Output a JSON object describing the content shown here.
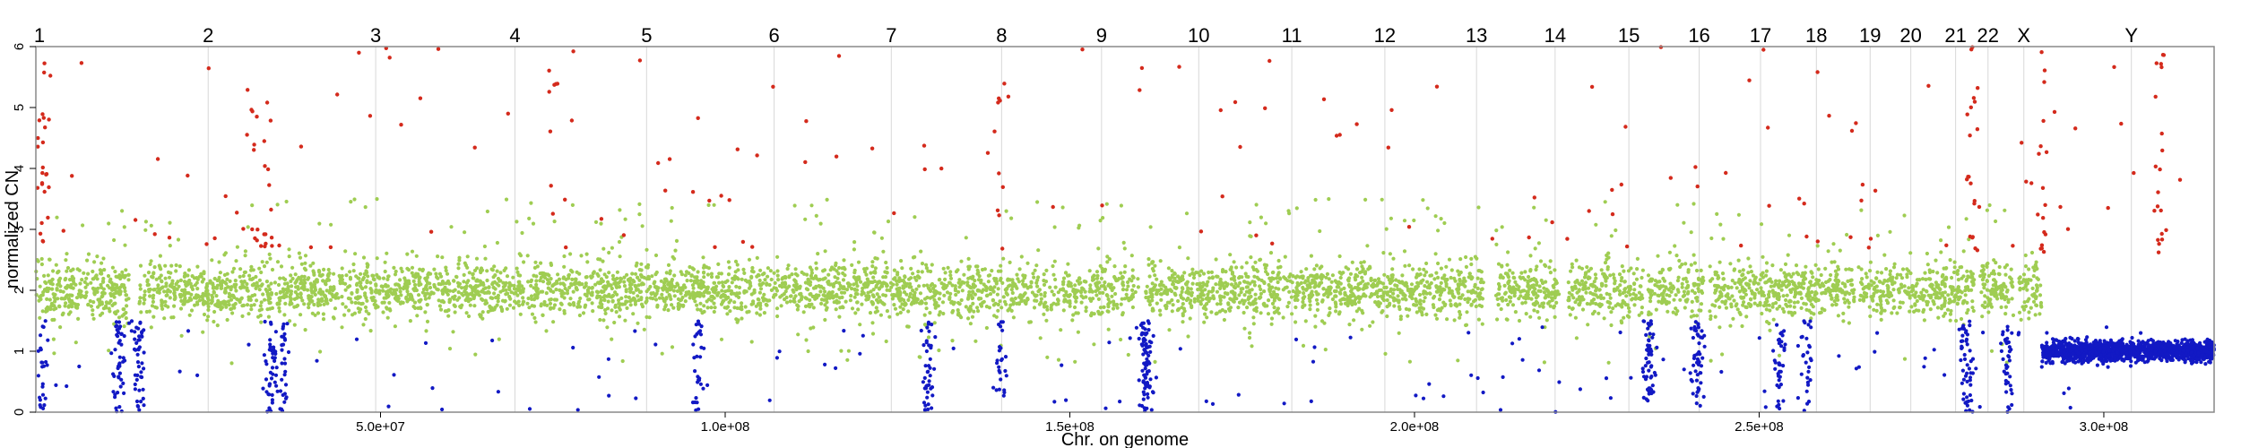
{
  "chart_data": {
    "type": "scatter",
    "title": "",
    "xlabel": "Chr. on genome",
    "ylabel": "normalized CN",
    "xlim": [
      0,
      316000000
    ],
    "ylim": [
      0,
      6
    ],
    "x_ticks": [
      50000000,
      100000000,
      150000000,
      200000000,
      250000000,
      300000000
    ],
    "x_tick_labels": [
      "5.0e+07",
      "1.0e+08",
      "1.5e+08",
      "2.0e+08",
      "2.5e+08",
      "3.0e+08"
    ],
    "y_ticks": [
      0,
      1,
      2,
      3,
      4,
      5,
      6
    ],
    "y_tick_labels": [
      "0",
      "1",
      "2",
      "3",
      "4",
      "5",
      "6"
    ],
    "grid": "vertical lines at chromosome starts",
    "legend": "none",
    "colors": {
      "gain": "#d42a1c",
      "normal": "#9fcd52",
      "loss": "#1219c4",
      "grid": "#d8d8d8",
      "frame": "#888888"
    },
    "chromosomes": [
      {
        "name": "1",
        "start": 0
      },
      {
        "name": "2",
        "start": 25000000
      },
      {
        "name": "3",
        "start": 49300000
      },
      {
        "name": "4",
        "start": 69500000
      },
      {
        "name": "5",
        "start": 88600000
      },
      {
        "name": "6",
        "start": 107100000
      },
      {
        "name": "7",
        "start": 124100000
      },
      {
        "name": "8",
        "start": 140100000
      },
      {
        "name": "9",
        "start": 154600000
      },
      {
        "name": "10",
        "start": 168700000
      },
      {
        "name": "11",
        "start": 182200000
      },
      {
        "name": "12",
        "start": 195700000
      },
      {
        "name": "13",
        "start": 209000000
      },
      {
        "name": "14",
        "start": 220400000
      },
      {
        "name": "15",
        "start": 231100000
      },
      {
        "name": "16",
        "start": 241300000
      },
      {
        "name": "17",
        "start": 250200000
      },
      {
        "name": "18",
        "start": 258300000
      },
      {
        "name": "19",
        "start": 266100000
      },
      {
        "name": "20",
        "start": 272000000
      },
      {
        "name": "21",
        "start": 278500000
      },
      {
        "name": "22",
        "start": 283200000
      },
      {
        "name": "X",
        "start": 288400000
      },
      {
        "name": "Y",
        "start": 304000000
      }
    ],
    "series": [
      {
        "name": "normal",
        "cn_mean": 2.0,
        "cn_spread": 0.22,
        "points_estimate": 6000
      },
      {
        "name": "gain",
        "cn_range": [
          2.6,
          6.0
        ]
      },
      {
        "name": "loss",
        "cn_range": [
          0.0,
          1.4
        ]
      }
    ],
    "regions": [
      {
        "from": 291000000,
        "to": 316000000,
        "series": "loss",
        "cn_mean": 1.0,
        "cn_spread": 0.08
      }
    ],
    "gap_regions": [
      {
        "from": 13500000,
        "to": 15000000
      },
      {
        "from": 160000000,
        "to": 161000000
      },
      {
        "from": 210000000,
        "to": 211500000
      },
      {
        "from": 221000000,
        "to": 222300000
      },
      {
        "from": 233200000,
        "to": 233900000
      },
      {
        "from": 242000000,
        "to": 242800000
      },
      {
        "from": 263800000,
        "to": 264400000
      },
      {
        "from": 281400000,
        "to": 282000000
      },
      {
        "from": 286900000,
        "to": 287600000
      }
    ],
    "loss_clusters": [
      {
        "center": 1000000,
        "count": 25
      },
      {
        "center": 12000000,
        "count": 45
      },
      {
        "center": 15000000,
        "count": 45
      },
      {
        "center": 34000000,
        "count": 40
      },
      {
        "center": 36000000,
        "count": 30
      },
      {
        "center": 96000000,
        "count": 30
      },
      {
        "center": 129500000,
        "count": 40
      },
      {
        "center": 140000000,
        "count": 25
      },
      {
        "center": 161000000,
        "count": 80
      },
      {
        "center": 234000000,
        "count": 60
      },
      {
        "center": 241000000,
        "count": 50
      },
      {
        "center": 253000000,
        "count": 35
      },
      {
        "center": 257000000,
        "count": 25
      },
      {
        "center": 280000000,
        "count": 50
      },
      {
        "center": 286000000,
        "count": 40
      }
    ],
    "gain_clusters": [
      {
        "center": 1000000,
        "count": 25
      },
      {
        "center": 31500000,
        "count": 12
      },
      {
        "center": 34000000,
        "count": 10
      },
      {
        "center": 75000000,
        "count": 8
      },
      {
        "center": 140000000,
        "count": 10
      },
      {
        "center": 281000000,
        "count": 20
      },
      {
        "center": 291000000,
        "count": 18
      },
      {
        "center": 308000000,
        "count": 18
      }
    ]
  }
}
